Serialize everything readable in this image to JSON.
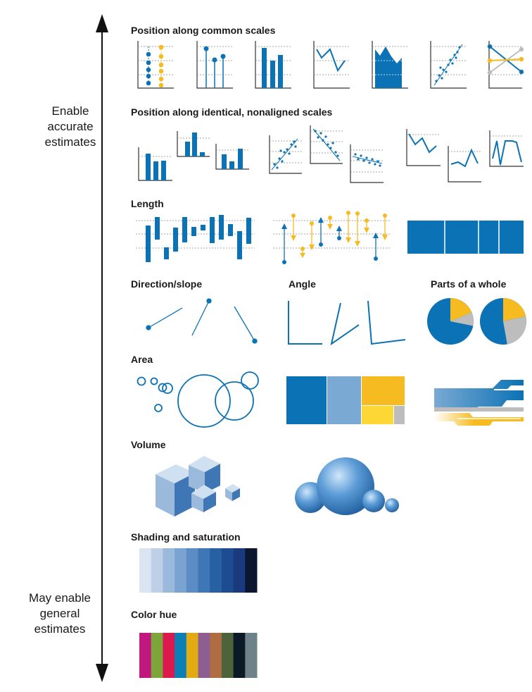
{
  "axis": {
    "top_label": [
      "Enable",
      "accurate",
      "estimates"
    ],
    "bottom_label": [
      "May enable",
      "general",
      "estimates"
    ]
  },
  "sections": {
    "position_common": "Position along common scales",
    "position_nonaligned": "Position along identical, nonaligned scales",
    "length": "Length",
    "direction": "Direction/slope",
    "angle": "Angle",
    "parts": "Parts of a whole",
    "area": "Area",
    "volume": "Volume",
    "shading": "Shading and saturation",
    "hue": "Color hue"
  },
  "colors": {
    "blue": "#0b72b5",
    "yellow": "#f6bb21",
    "gray": "#bdbdbd",
    "light_blue": "#7aa9d3",
    "shades": [
      "#dbe5f1",
      "#bdd0e7",
      "#9bbadb",
      "#7aa3d1",
      "#5c8cc4",
      "#3e76b6",
      "#2860a4",
      "#1d4c93",
      "#1a3a7d",
      "#0b1630"
    ],
    "hues": [
      "#c0187f",
      "#7da63a",
      "#dd1a4f",
      "#0a80b4",
      "#e2ab14",
      "#8c5e91",
      "#b06c43",
      "#4d6339",
      "#0c1a27",
      "#6e8289"
    ]
  }
}
